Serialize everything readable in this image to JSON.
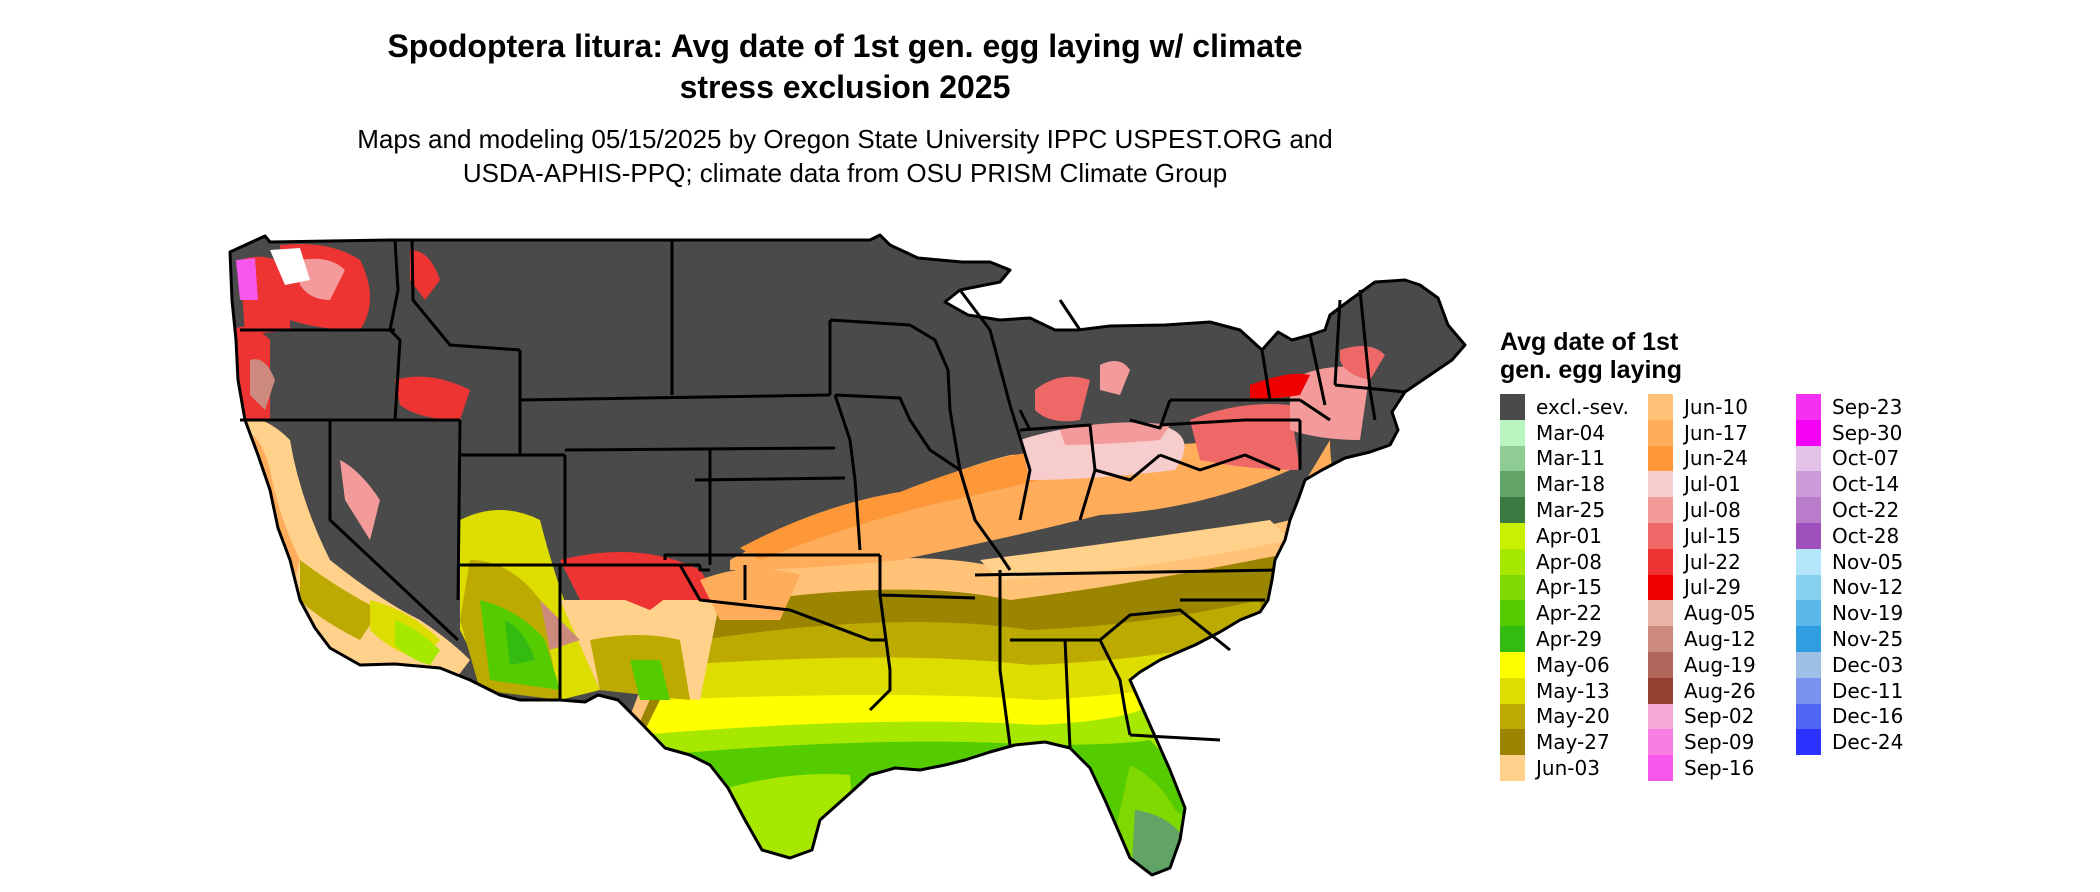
{
  "title_line1": "Spodoptera litura: Avg date of 1st gen. egg laying w/ climate",
  "title_line2": "stress exclusion 2025",
  "subtitle_line1": "Maps and modeling 05/15/2025 by Oregon State University IPPC USPEST.ORG and",
  "subtitle_line2": "USDA-APHIS-PPQ; climate data from OSU PRISM Climate Group",
  "legend": {
    "title_line1": "Avg date of 1st",
    "title_line2": "gen. egg laying",
    "items": [
      {
        "label": "excl.-sev.",
        "color": "#4a4a4a"
      },
      {
        "label": "Mar-04",
        "color": "#b9f5bf"
      },
      {
        "label": "Mar-11",
        "color": "#8fcc94"
      },
      {
        "label": "Mar-18",
        "color": "#62a368"
      },
      {
        "label": "Mar-25",
        "color": "#3b7a41"
      },
      {
        "label": "Apr-01",
        "color": "#c8f000"
      },
      {
        "label": "Apr-08",
        "color": "#a6e800"
      },
      {
        "label": "Apr-15",
        "color": "#7fd800"
      },
      {
        "label": "Apr-22",
        "color": "#55cc00"
      },
      {
        "label": "Apr-29",
        "color": "#33bb11"
      },
      {
        "label": "May-06",
        "color": "#ffff00"
      },
      {
        "label": "May-13",
        "color": "#dedd00"
      },
      {
        "label": "May-20",
        "color": "#bcaa00"
      },
      {
        "label": "May-27",
        "color": "#9a8400"
      },
      {
        "label": "Jun-03",
        "color": "#ffd18a"
      },
      {
        "label": "Jun-10",
        "color": "#ffc276"
      },
      {
        "label": "Jun-17",
        "color": "#ffad5a"
      },
      {
        "label": "Jun-24",
        "color": "#fd9738"
      },
      {
        "label": "Jul-01",
        "color": "#f6cccc"
      },
      {
        "label": "Jul-08",
        "color": "#f39a9a"
      },
      {
        "label": "Jul-15",
        "color": "#ef6868"
      },
      {
        "label": "Jul-22",
        "color": "#ee3333"
      },
      {
        "label": "Jul-29",
        "color": "#ee0000"
      },
      {
        "label": "Aug-05",
        "color": "#e8b4a8"
      },
      {
        "label": "Aug-12",
        "color": "#cc8a7e"
      },
      {
        "label": "Aug-19",
        "color": "#b0665a"
      },
      {
        "label": "Aug-26",
        "color": "#944030"
      },
      {
        "label": "Sep-02",
        "color": "#f5a8d8"
      },
      {
        "label": "Sep-09",
        "color": "#f77fe4"
      },
      {
        "label": "Sep-16",
        "color": "#f558ea"
      },
      {
        "label": "Sep-23",
        "color": "#f530f0"
      },
      {
        "label": "Sep-30",
        "color": "#f500f5"
      },
      {
        "label": "Oct-07",
        "color": "#e2c2e6"
      },
      {
        "label": "Oct-14",
        "color": "#cc9ad6"
      },
      {
        "label": "Oct-22",
        "color": "#b87cca"
      },
      {
        "label": "Oct-28",
        "color": "#a050bc"
      },
      {
        "label": "Nov-05",
        "color": "#b2e6f8"
      },
      {
        "label": "Nov-12",
        "color": "#86d0f0"
      },
      {
        "label": "Nov-19",
        "color": "#5ab8ea"
      },
      {
        "label": "Nov-25",
        "color": "#2e9ee0"
      },
      {
        "label": "Dec-03",
        "color": "#9ec0e6"
      },
      {
        "label": "Dec-11",
        "color": "#7a92ee"
      },
      {
        "label": "Dec-16",
        "color": "#5266f4"
      },
      {
        "label": "Dec-24",
        "color": "#2a33ff"
      }
    ]
  }
}
